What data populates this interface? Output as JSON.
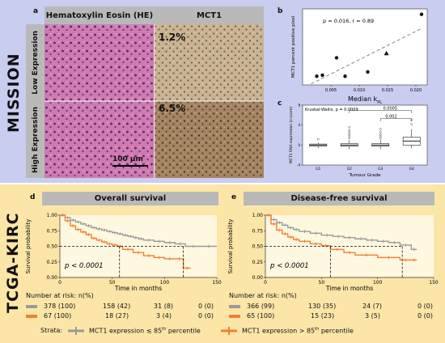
{
  "mission": {
    "side_label": "MISSION",
    "panel_a": {
      "letter": "a",
      "col_he": "Hematoxylin Eosin (HE)",
      "col_mct1": "MCT1",
      "row_low": "Low Expression",
      "row_high": "High Expression",
      "pct_low": "1.2%",
      "pct_high": "6.5%",
      "scale_bar": "100 µm"
    },
    "panel_b": {
      "letter": "b",
      "stats": "p = 0.016, r = 0.89",
      "ylabel": "MCT1 percent positive pixel",
      "xlabel": "Median k",
      "xlabel_sub": "PL"
    },
    "panel_c": {
      "letter": "c",
      "test": "Kruskal-Wallis, p = 0.0009",
      "bracket_1": "0.0005",
      "bracket_2": "0.002",
      "ylabel": "MCT1 RNA expression (z-score)",
      "xlabel": "Tumour Grade"
    }
  },
  "tcga": {
    "side_label": "TCGA-KIRC",
    "strata_label": "Strata:",
    "legend_low": "MCT1 expression ≤ 85",
    "legend_high": "MCT1 expression > 85",
    "legend_sup": "th",
    "legend_tail": " percentile",
    "colors": {
      "low": "#9a9a9a",
      "high": "#f08030",
      "blue_bg": "#c9cdf0",
      "yellow_bg": "#fbe6a8"
    },
    "panel_d": {
      "letter": "d",
      "title": "Overall survival",
      "pval": "p < 0.0001",
      "ylabel": "Survival probability",
      "xlabel": "Time in months",
      "risk_title": "Number at risk: n(%)",
      "risk_low": [
        "378 (100)",
        "158 (42)",
        "31 (8)",
        "0 (0)"
      ],
      "risk_high": [
        "67 (100)",
        "18 (27)",
        "3 (4)",
        "0 (0)"
      ]
    },
    "panel_e": {
      "letter": "e",
      "title": "Disease-free survival",
      "pval": "p < 0.0001",
      "ylabel": "Survival probability",
      "xlabel": "Time in months",
      "risk_title": "Number at risk: n(%)",
      "risk_low": [
        "366 (99)",
        "130 (35)",
        "24 (7)",
        "0 (0)"
      ],
      "risk_high": [
        "65 (100)",
        "15 (23)",
        "3 (5)",
        "0 (0)"
      ]
    }
  },
  "chart_data": [
    {
      "type": "scatter",
      "id": "b",
      "xlim": [
        0,
        0.022
      ],
      "ylim": [
        0,
        7
      ],
      "x_ticks": [
        "0.005",
        "0.010",
        "0.015",
        "0.020"
      ],
      "points": [
        {
          "x": 0.0025,
          "y": 0.8,
          "marker": "circle"
        },
        {
          "x": 0.0035,
          "y": 0.9,
          "marker": "circle"
        },
        {
          "x": 0.006,
          "y": 2.5,
          "marker": "circle"
        },
        {
          "x": 0.0075,
          "y": 0.8,
          "marker": "circle"
        },
        {
          "x": 0.0115,
          "y": 1.2,
          "marker": "circle"
        },
        {
          "x": 0.0148,
          "y": 2.9,
          "marker": "triangle"
        },
        {
          "x": 0.021,
          "y": 6.5,
          "marker": "circle"
        }
      ],
      "trend": [
        [
          0.0015,
          0.1
        ],
        [
          0.021,
          5.2
        ]
      ]
    },
    {
      "type": "box",
      "id": "c",
      "categories": [
        "G1",
        "G2",
        "G3",
        "G4"
      ],
      "ylim": [
        -4,
        8
      ],
      "y_ticks": [
        "-4",
        "0",
        "4",
        "8"
      ],
      "boxes": [
        {
          "q1": -0.25,
          "median": 0.0,
          "q3": 0.2,
          "lo": -0.6,
          "hi": 0.5,
          "out": [
            1.2
          ]
        },
        {
          "q1": -0.25,
          "median": 0.0,
          "q3": 0.3,
          "lo": -0.8,
          "hi": 1.0,
          "out": [
            1.4,
            1.8,
            2.2,
            2.6,
            3.0,
            3.6
          ]
        },
        {
          "q1": -0.25,
          "median": 0.0,
          "q3": 0.3,
          "lo": -0.8,
          "hi": 1.0,
          "out": [
            1.3,
            1.7,
            2.1,
            2.6,
            3.2
          ]
        },
        {
          "q1": 0.0,
          "median": 0.8,
          "q3": 1.6,
          "lo": -0.6,
          "hi": 3.2,
          "out": [
            4.2,
            5.0
          ]
        }
      ]
    },
    {
      "type": "line",
      "id": "d",
      "title": "Overall survival",
      "xlim": [
        0,
        150
      ],
      "ylim": [
        0,
        1
      ],
      "x_ticks": [
        "0",
        "50",
        "100",
        "150"
      ],
      "y_ticks": [
        "0.00",
        "0.25",
        "0.50",
        "0.75",
        "1.00"
      ],
      "median_low": 118,
      "median_high": 57,
      "series": [
        {
          "name": "MCT1 expression ≤ 85th percentile",
          "color": "#9a9a9a",
          "x": [
            0,
            5,
            10,
            15,
            20,
            25,
            30,
            35,
            40,
            45,
            50,
            55,
            60,
            65,
            70,
            75,
            80,
            90,
            100,
            110,
            120,
            135,
            150
          ],
          "y": [
            1.0,
            0.96,
            0.92,
            0.89,
            0.86,
            0.83,
            0.8,
            0.78,
            0.76,
            0.74,
            0.72,
            0.7,
            0.68,
            0.66,
            0.64,
            0.62,
            0.6,
            0.58,
            0.56,
            0.54,
            0.5,
            0.5,
            0.5
          ]
        },
        {
          "name": "MCT1 expression > 85th percentile",
          "color": "#f08030",
          "x": [
            0,
            5,
            10,
            15,
            20,
            25,
            30,
            35,
            40,
            45,
            50,
            55,
            60,
            70,
            80,
            90,
            100,
            110,
            118,
            125
          ],
          "y": [
            1.0,
            0.91,
            0.83,
            0.77,
            0.73,
            0.69,
            0.63,
            0.6,
            0.57,
            0.54,
            0.52,
            0.5,
            0.45,
            0.4,
            0.35,
            0.32,
            0.3,
            0.3,
            0.15,
            0.15
          ]
        }
      ]
    },
    {
      "type": "line",
      "id": "e",
      "title": "Disease-free survival",
      "xlim": [
        0,
        150
      ],
      "ylim": [
        0,
        1
      ],
      "x_ticks": [
        "0",
        "50",
        "100",
        "150"
      ],
      "y_ticks": [
        "0.00",
        "0.25",
        "0.50",
        "0.75",
        "1.00"
      ],
      "median_low": 122,
      "median_high": 58,
      "series": [
        {
          "name": "MCT1 expression ≤ 85th percentile",
          "color": "#9a9a9a",
          "x": [
            0,
            5,
            10,
            15,
            20,
            25,
            30,
            40,
            50,
            60,
            70,
            80,
            90,
            100,
            110,
            120,
            130,
            135
          ],
          "y": [
            1.0,
            0.93,
            0.88,
            0.84,
            0.8,
            0.77,
            0.74,
            0.71,
            0.68,
            0.66,
            0.64,
            0.62,
            0.6,
            0.58,
            0.56,
            0.52,
            0.45,
            0.45
          ]
        },
        {
          "name": "MCT1 expression > 85th percentile",
          "color": "#f08030",
          "x": [
            0,
            5,
            10,
            15,
            20,
            25,
            30,
            40,
            50,
            58,
            70,
            80,
            100,
            120,
            130,
            135
          ],
          "y": [
            1.0,
            0.86,
            0.76,
            0.7,
            0.65,
            0.61,
            0.58,
            0.54,
            0.51,
            0.45,
            0.4,
            0.36,
            0.32,
            0.28,
            0.28,
            0.28
          ]
        }
      ]
    }
  ]
}
